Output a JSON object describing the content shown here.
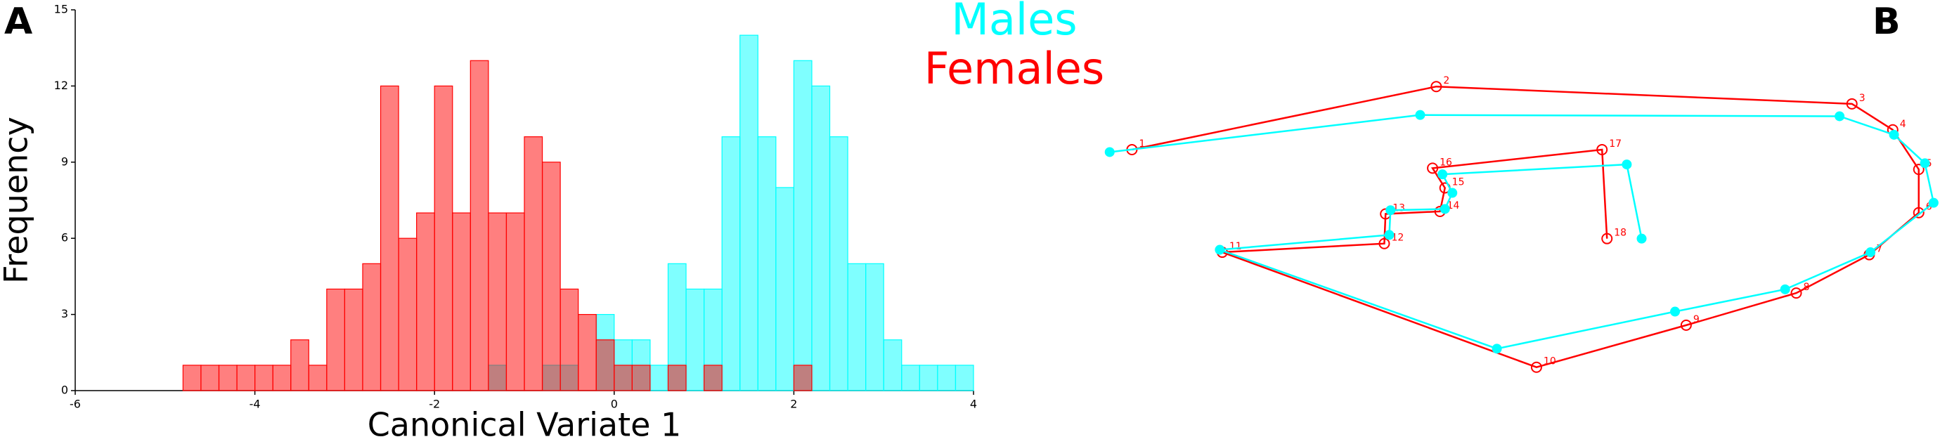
{
  "chart_data": [
    {
      "type": "histogram",
      "panel": "A",
      "xlabel": "Canonical Variate 1",
      "ylabel": "Frequency",
      "bins": [
        -4.8,
        -4.6,
        -4.4,
        -4.2,
        -4,
        -3.8,
        -3.6,
        -3.4,
        -3.2,
        -3,
        -2.8,
        -2.6,
        -2.4,
        -2.2,
        -2,
        -1.8,
        -1.6,
        -1.4,
        -1.2,
        -1,
        -0.8,
        -0.6,
        -0.4,
        -0.2,
        0,
        0.2,
        0.4,
        0.6,
        0.8,
        1,
        1.2,
        1.4,
        1.6,
        1.8,
        2,
        2.2,
        2.4,
        2.6,
        2.8,
        3,
        3.2,
        3.4,
        3.6,
        3.8,
        4
      ],
      "series": [
        {
          "name": "Males",
          "color": "#00ffff",
          "values": [
            0,
            0,
            0,
            0,
            0,
            0,
            0,
            0,
            0,
            0,
            0,
            0,
            0,
            0,
            0,
            0,
            0,
            1,
            0,
            0,
            1,
            1,
            0,
            3,
            2,
            2,
            1,
            5,
            4,
            4,
            10,
            14,
            10,
            8,
            13,
            12,
            10,
            5,
            5,
            2,
            1,
            1,
            1,
            1
          ]
        },
        {
          "name": "Females",
          "color": "#ff0000",
          "values": [
            1,
            1,
            1,
            1,
            1,
            1,
            2,
            1,
            4,
            4,
            5,
            12,
            6,
            7,
            12,
            7,
            13,
            7,
            7,
            10,
            9,
            4,
            3,
            2,
            1,
            1,
            0,
            1,
            0,
            1,
            0,
            0,
            0,
            0,
            1,
            0,
            0,
            0,
            0,
            0,
            0,
            0,
            0,
            0
          ]
        }
      ],
      "xlim": [
        -6,
        4
      ],
      "xticks": [
        -6,
        -4,
        -2,
        0,
        2,
        4
      ],
      "ylim": [
        0,
        15
      ],
      "yticks": [
        0,
        3,
        6,
        9,
        12,
        15
      ]
    },
    {
      "type": "shape",
      "panel": "B",
      "series": [
        {
          "color": "#ff0000",
          "x": [
            35,
            281,
            617,
            650,
            671,
            671,
            631,
            572,
            483,
            362,
            108,
            239,
            240,
            284,
            288,
            278,
            415,
            419
          ],
          "y": [
            199,
            250,
            236,
            215,
            183,
            148,
            114,
            83,
            57,
            23,
            116,
            123,
            147,
            149,
            168,
            184,
            199,
            127
          ],
          "labels": [
            "1",
            "2",
            "3",
            "4",
            "5",
            "6",
            "7",
            "8",
            "9",
            "10",
            "11",
            "12",
            "13",
            "14",
            "15",
            "16",
            "17",
            "18"
          ]
        },
        {
          "color": "#00ffff",
          "x": [
            17,
            268,
            607,
            651,
            676,
            683,
            632,
            563,
            474,
            330,
            106,
            243,
            244,
            288,
            294,
            286,
            435,
            447
          ],
          "y": [
            197,
            227,
            226,
            211,
            188,
            156,
            116,
            86,
            68,
            38,
            118,
            130,
            150,
            151,
            164,
            179,
            187,
            127
          ]
        }
      ]
    }
  ]
}
